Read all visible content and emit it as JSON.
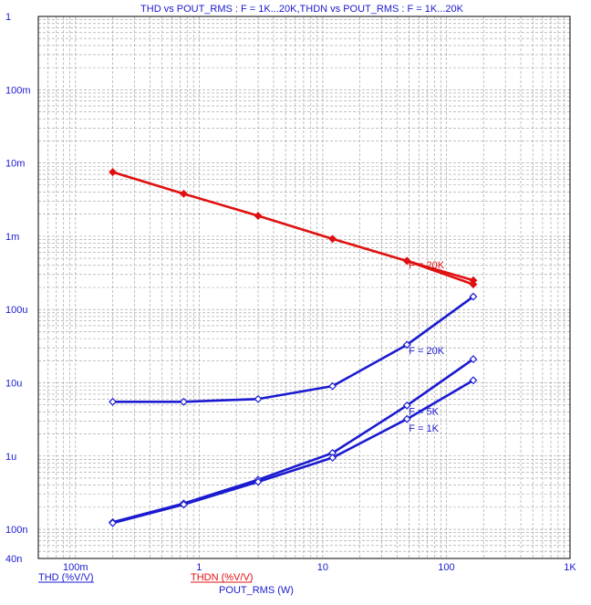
{
  "chart_data": {
    "type": "line",
    "title": "THD vs POUT_RMS : F = 1K...20K,THDN vs POUT_RMS : F = 1K...20K",
    "xlabel": "POUT_RMS (W)",
    "x_scale": "log",
    "y_scale": "log",
    "xlim": [
      0.05,
      1000
    ],
    "ylim": [
      4e-08,
      1
    ],
    "x_ticks": [
      {
        "value": 0.1,
        "label": "100m"
      },
      {
        "value": 1,
        "label": "1"
      },
      {
        "value": 10,
        "label": "10"
      },
      {
        "value": 100,
        "label": "100"
      },
      {
        "value": 1000,
        "label": "1K"
      }
    ],
    "y_ticks": [
      {
        "value": 1,
        "label": "1"
      },
      {
        "value": 0.1,
        "label": "100m"
      },
      {
        "value": 0.01,
        "label": "10m"
      },
      {
        "value": 0.001,
        "label": "1m"
      },
      {
        "value": 0.0001,
        "label": "100u"
      },
      {
        "value": 1e-05,
        "label": "10u"
      },
      {
        "value": 1e-06,
        "label": "1u"
      },
      {
        "value": 1e-07,
        "label": "100n"
      },
      {
        "value": 4e-08,
        "label": "40n"
      }
    ],
    "grid": true,
    "legend": [
      {
        "label": "THD (%V/V)",
        "color": "#1a1ad0"
      },
      {
        "label": "THDN (%V/V)",
        "color": "#e01010"
      }
    ],
    "series": [
      {
        "legend_group": "THDN (%V/V)",
        "annotation": "F = 20K",
        "color": "#e01010",
        "marker": "filled-diamond",
        "x": [
          0.2,
          0.75,
          3.0,
          12.0,
          48.0,
          165.0
        ],
        "y": [
          0.0075,
          0.0038,
          0.0019,
          0.00092,
          0.00046,
          0.00025
        ]
      },
      {
        "legend_group": "THDN (%V/V)",
        "annotation": "",
        "color": "#e01010",
        "marker": "filled-diamond",
        "x": [
          48.0,
          165.0
        ],
        "y": [
          0.00046,
          0.00022
        ]
      },
      {
        "legend_group": "THD (%V/V)",
        "annotation": "F = 20K",
        "color": "#1a1ad0",
        "marker": "open-diamond",
        "x": [
          0.2,
          0.75,
          3.0,
          12.0,
          48.0,
          165.0
        ],
        "y": [
          5.5e-06,
          5.5e-06,
          6e-06,
          9e-06,
          3.3e-05,
          0.00015
        ]
      },
      {
        "legend_group": "THD (%V/V)",
        "annotation": "F = 5K",
        "color": "#1a1ad0",
        "marker": "open-diamond",
        "x": [
          0.2,
          0.75,
          3.0,
          12.0,
          48.0,
          165.0
        ],
        "y": [
          1.25e-07,
          2.25e-07,
          4.75e-07,
          1.1e-06,
          4.9e-06,
          2.1e-05
        ]
      },
      {
        "legend_group": "THD (%V/V)",
        "annotation": "F = 1K",
        "color": "#1a1ad0",
        "marker": "open-diamond",
        "x": [
          0.2,
          0.75,
          3.0,
          12.0,
          48.0,
          165.0
        ],
        "y": [
          1.22e-07,
          2.18e-07,
          4.45e-07,
          9.5e-07,
          3.2e-06,
          1.08e-05
        ]
      }
    ]
  }
}
